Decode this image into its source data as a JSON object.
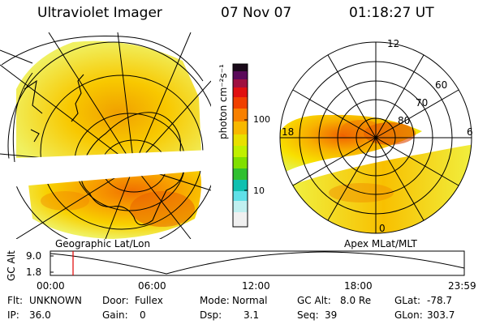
{
  "header": {
    "title": "Ultraviolet Imager",
    "date": "07 Nov 07",
    "time": "01:18:27 UT"
  },
  "left_panel": {
    "caption": "Geographic Lat/Lon"
  },
  "right_panel": {
    "caption": "Apex MLat/MLT",
    "hour_labels": {
      "top": "12",
      "left": "18",
      "right": "6",
      "bottom": "0"
    },
    "lat_labels": [
      "60",
      "70",
      "80"
    ]
  },
  "colorbar": {
    "unit_label": "photon cm⁻²s⁻¹",
    "tick_labels": [
      "100",
      "10"
    ],
    "colors": [
      "#1a0a1a",
      "#5a0a5a",
      "#b0103a",
      "#e01010",
      "#f06010",
      "#f8a000",
      "#e0d000",
      "#c8f000",
      "#80e000",
      "#30c030",
      "#10c0b0",
      "#60e0e8",
      "#c0f0f0",
      "#f0f0f0"
    ]
  },
  "altitude_plot": {
    "axis_label": "GC Alt",
    "y_ticks": [
      "9.0",
      "1.8"
    ],
    "x_ticks": [
      "00:00",
      "06:00",
      "12:00",
      "18:00",
      "23:59"
    ],
    "marker_color": "#e00000"
  },
  "info": {
    "row1": [
      {
        "label": "Flt:",
        "value": "UNKNOWN"
      },
      {
        "label": "Door:",
        "value": "Fullex"
      },
      {
        "label": "Mode:",
        "value": "Normal"
      },
      {
        "label": "GC Alt:",
        "value": "8.0 Re"
      },
      {
        "label": "GLat:",
        "value": "-78.7"
      }
    ],
    "row2": [
      {
        "label": "IP:",
        "value": "36.0"
      },
      {
        "label": "Gain:",
        "value": "0"
      },
      {
        "label": "Dsp:",
        "value": "3.1"
      },
      {
        "label": "Seq:",
        "value": "39"
      },
      {
        "label": "GLon:",
        "value": "303.7"
      }
    ]
  }
}
